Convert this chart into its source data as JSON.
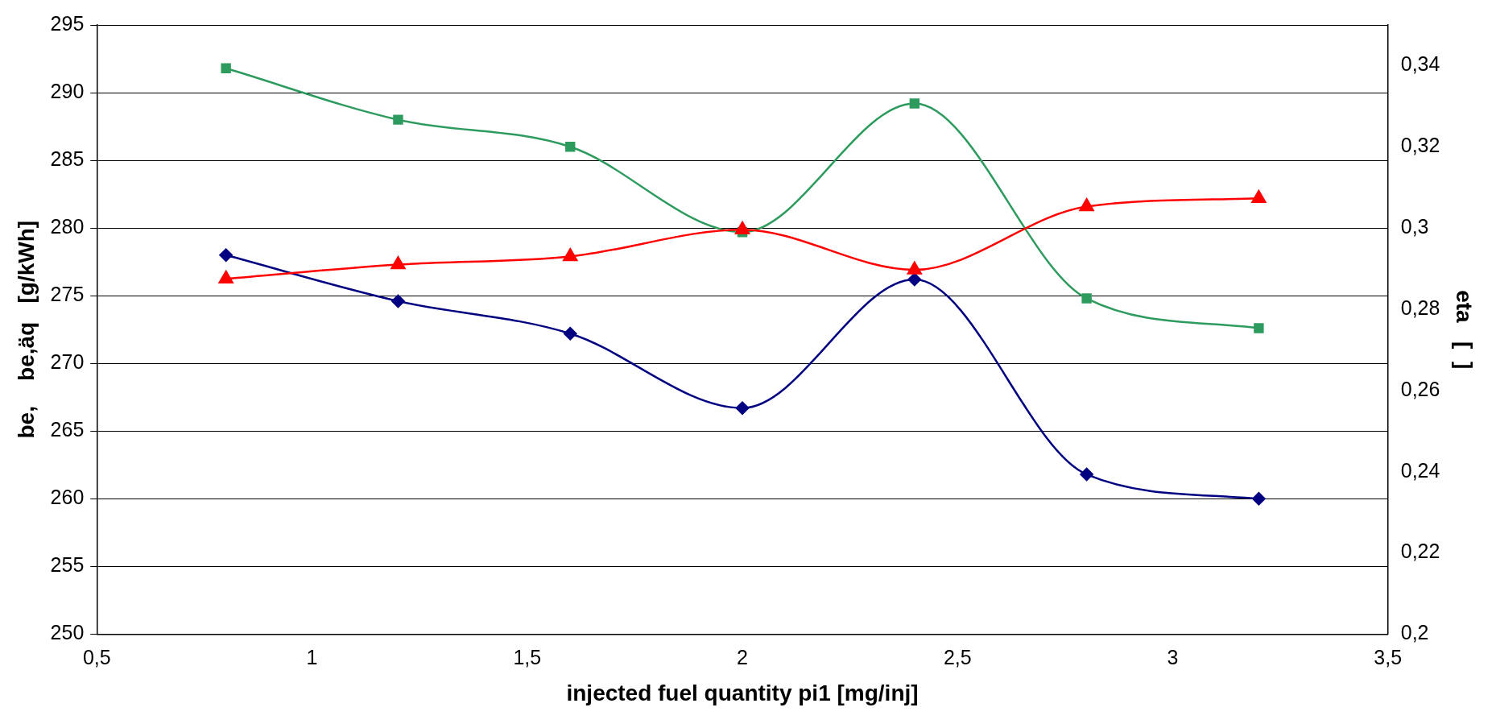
{
  "chart_data": {
    "type": "line",
    "xlabel": "injected fuel quantity pi1 [mg/inj]",
    "ylabel": "be,    be,äq   [g/kWh]",
    "y2label": "eta   [  ]",
    "x": [
      0.8,
      1.2,
      1.6,
      2.0,
      2.4,
      2.8,
      3.2
    ],
    "xlim": [
      0.5,
      3.5
    ],
    "xticks": [
      {
        "value": 0.5,
        "label": "0,5"
      },
      1,
      {
        "value": 1.5,
        "label": "1,5"
      },
      2,
      {
        "value": 2.5,
        "label": "2,5"
      },
      3,
      {
        "value": 3.5,
        "label": "3,5"
      }
    ],
    "ylim": [
      250,
      295
    ],
    "yticks": [
      250,
      255,
      260,
      265,
      270,
      275,
      280,
      285,
      290,
      295
    ],
    "y2lim": [
      0.2,
      0.35
    ],
    "y2ticks": [
      {
        "value": 0.2,
        "label": "0,2"
      },
      {
        "value": 0.22,
        "label": "0,22"
      },
      {
        "value": 0.24,
        "label": "0,24"
      },
      {
        "value": 0.26,
        "label": "0,26"
      },
      {
        "value": 0.28,
        "label": "0,28"
      },
      {
        "value": 0.3,
        "label": "0,3"
      },
      {
        "value": 0.32,
        "label": "0,32"
      },
      {
        "value": 0.34,
        "label": "0,34"
      }
    ],
    "grid": "y",
    "legend": false,
    "series": [
      {
        "color": "#000080",
        "marker": "diamond",
        "values": [
          278.0,
          274.6,
          272.2,
          266.7,
          276.2,
          261.8,
          260.0
        ]
      },
      {
        "color": "#2e9b5e",
        "marker": "square",
        "values": [
          291.8,
          288.0,
          286.0,
          279.7,
          289.2,
          274.8,
          272.6
        ]
      },
      {
        "color": "#ff0000",
        "marker": "triangle",
        "axis": "y2",
        "values": [
          0.2875,
          0.291,
          0.293,
          0.2996,
          0.2897,
          0.3053,
          0.3073
        ]
      }
    ]
  }
}
